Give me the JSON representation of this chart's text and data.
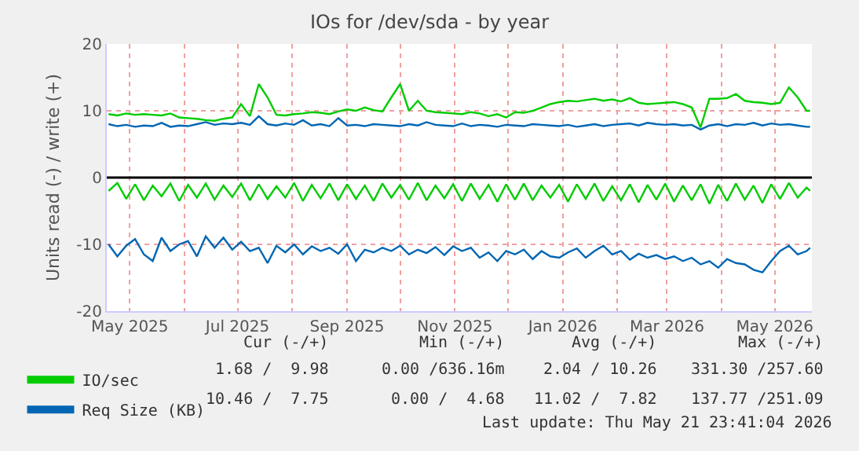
{
  "chart_data": {
    "type": "line",
    "title": "IOs for /dev/sda - by year",
    "ylabel": "Units read (-) / write (+)",
    "x": [
      "2025-04-19",
      "2025-04-24",
      "2025-04-29",
      "2025-05-04",
      "2025-05-09",
      "2025-05-14",
      "2025-05-19",
      "2025-05-24",
      "2025-05-29",
      "2025-06-03",
      "2025-06-08",
      "2025-06-13",
      "2025-06-18",
      "2025-06-23",
      "2025-06-28",
      "2025-07-03",
      "2025-07-08",
      "2025-07-13",
      "2025-07-18",
      "2025-07-23",
      "2025-07-28",
      "2025-08-02",
      "2025-08-07",
      "2025-08-12",
      "2025-08-17",
      "2025-08-22",
      "2025-08-27",
      "2025-09-01",
      "2025-09-06",
      "2025-09-11",
      "2025-09-16",
      "2025-09-21",
      "2025-09-26",
      "2025-10-01",
      "2025-10-06",
      "2025-10-11",
      "2025-10-16",
      "2025-10-21",
      "2025-10-26",
      "2025-10-31",
      "2025-11-05",
      "2025-11-10",
      "2025-11-15",
      "2025-11-20",
      "2025-11-25",
      "2025-11-30",
      "2025-12-05",
      "2025-12-10",
      "2025-12-15",
      "2025-12-20",
      "2025-12-25",
      "2025-12-30",
      "2026-01-04",
      "2026-01-09",
      "2026-01-14",
      "2026-01-19",
      "2026-01-24",
      "2026-01-29",
      "2026-02-03",
      "2026-02-08",
      "2026-02-13",
      "2026-02-18",
      "2026-02-23",
      "2026-02-28",
      "2026-03-05",
      "2026-03-10",
      "2026-03-15",
      "2026-03-20",
      "2026-03-25",
      "2026-03-30",
      "2026-04-04",
      "2026-04-09",
      "2026-04-14",
      "2026-04-19",
      "2026-04-24",
      "2026-04-29",
      "2026-05-04",
      "2026-05-09",
      "2026-05-14",
      "2026-05-19",
      "2026-05-21"
    ],
    "series": [
      {
        "name": "IO/sec",
        "color": "#00cc00",
        "values": [
          9.5,
          9.3,
          9.6,
          9.4,
          9.5,
          9.4,
          9.3,
          9.6,
          9.0,
          8.9,
          8.8,
          8.6,
          8.5,
          8.8,
          9.0,
          11.0,
          9.2,
          14.0,
          12.0,
          9.4,
          9.3,
          9.5,
          9.6,
          9.8,
          9.7,
          9.5,
          9.9,
          10.2,
          10.0,
          10.5,
          10.1,
          9.9,
          12.0,
          14.0,
          10.0,
          11.5,
          10.0,
          9.8,
          9.7,
          9.6,
          9.5,
          9.8,
          9.6,
          9.2,
          9.5,
          9.0,
          9.8,
          9.7,
          10.0,
          10.5,
          11.0,
          11.3,
          11.5,
          11.4,
          11.6,
          11.8,
          11.5,
          11.7,
          11.4,
          11.9,
          11.2,
          11.0,
          11.1,
          11.2,
          11.3,
          11.0,
          10.5,
          7.5,
          11.8,
          11.8,
          11.9,
          12.5,
          11.5,
          11.3,
          11.2,
          11.0,
          11.2,
          13.5,
          12.0,
          10.0,
          10.0
        ]
      },
      {
        "color": "#00cc00",
        "values": [
          -2.0,
          -0.8,
          -3.2,
          -1.0,
          -3.4,
          -1.2,
          -2.8,
          -0.9,
          -3.5,
          -1.1,
          -3.0,
          -0.9,
          -3.3,
          -1.2,
          -2.9,
          -0.9,
          -3.4,
          -1.0,
          -3.2,
          -1.3,
          -3.0,
          -0.8,
          -3.5,
          -1.1,
          -3.1,
          -0.9,
          -3.4,
          -1.0,
          -3.2,
          -1.2,
          -3.5,
          -0.9,
          -3.0,
          -1.1,
          -3.3,
          -0.8,
          -3.4,
          -1.2,
          -3.1,
          -1.0,
          -3.5,
          -0.9,
          -3.2,
          -1.1,
          -3.6,
          -1.0,
          -3.3,
          -0.9,
          -3.4,
          -1.2,
          -3.0,
          -1.1,
          -3.6,
          -1.0,
          -3.2,
          -0.9,
          -3.5,
          -1.3,
          -3.4,
          -1.0,
          -3.7,
          -1.1,
          -3.3,
          -0.9,
          -3.6,
          -1.2,
          -3.4,
          -1.0,
          -3.9,
          -1.1,
          -3.5,
          -0.9,
          -3.3,
          -1.2,
          -3.8,
          -1.0,
          -3.2,
          -0.8,
          -3.0,
          -1.5,
          -2.0
        ]
      },
      {
        "name": "Req Size (KB)",
        "color": "#0066b3",
        "values": [
          8.0,
          7.7,
          7.9,
          7.6,
          7.8,
          7.7,
          8.2,
          7.6,
          7.8,
          7.7,
          8.0,
          8.3,
          7.9,
          8.1,
          8.0,
          8.2,
          7.9,
          9.2,
          8.0,
          7.8,
          8.1,
          7.9,
          8.6,
          7.8,
          8.0,
          7.7,
          8.9,
          7.8,
          7.9,
          7.7,
          8.0,
          7.9,
          7.8,
          7.7,
          8.0,
          7.8,
          8.3,
          7.9,
          7.8,
          7.7,
          8.1,
          7.7,
          7.9,
          7.8,
          7.6,
          7.9,
          7.8,
          7.7,
          8.0,
          7.9,
          7.8,
          7.7,
          7.9,
          7.6,
          7.8,
          8.0,
          7.7,
          7.9,
          8.0,
          8.1,
          7.8,
          8.2,
          8.0,
          7.9,
          8.0,
          7.8,
          7.9,
          7.2,
          7.8,
          8.0,
          7.7,
          8.0,
          7.9,
          8.2,
          7.8,
          8.1,
          7.9,
          8.0,
          7.8,
          7.6,
          7.6
        ]
      },
      {
        "color": "#0066b3",
        "values": [
          -10.0,
          -11.8,
          -10.2,
          -9.2,
          -11.5,
          -12.5,
          -9.0,
          -11.0,
          -10.0,
          -9.5,
          -11.8,
          -8.8,
          -10.5,
          -9.0,
          -10.8,
          -9.6,
          -11.0,
          -10.5,
          -12.8,
          -10.2,
          -11.2,
          -10.0,
          -11.5,
          -10.3,
          -11.0,
          -10.5,
          -11.4,
          -10.0,
          -12.5,
          -10.8,
          -11.2,
          -10.5,
          -11.0,
          -10.2,
          -11.5,
          -10.8,
          -11.3,
          -10.4,
          -11.6,
          -10.3,
          -11.0,
          -10.5,
          -12.0,
          -11.2,
          -12.5,
          -11.0,
          -11.5,
          -10.8,
          -12.2,
          -11.0,
          -11.8,
          -12.0,
          -11.2,
          -10.6,
          -12.0,
          -11.0,
          -10.2,
          -11.5,
          -11.0,
          -12.3,
          -11.4,
          -12.0,
          -11.6,
          -12.2,
          -11.8,
          -12.5,
          -12.0,
          -13.0,
          -12.5,
          -13.5,
          -12.2,
          -12.8,
          -13.0,
          -13.8,
          -14.2,
          -12.5,
          -11.0,
          -10.2,
          -11.5,
          -11.0,
          -10.5
        ]
      }
    ],
    "xlim": [
      "2025-04-18",
      "2026-05-22"
    ],
    "xticks": [
      {
        "value": "2025-05-01",
        "label": "May 2025"
      },
      {
        "value": "2025-06-01",
        "label": null
      },
      {
        "value": "2025-07-01",
        "label": "Jul 2025"
      },
      {
        "value": "2025-08-01",
        "label": null
      },
      {
        "value": "2025-09-01",
        "label": "Sep 2025"
      },
      {
        "value": "2025-10-01",
        "label": null
      },
      {
        "value": "2025-11-01",
        "label": "Nov 2025"
      },
      {
        "value": "2025-12-01",
        "label": null
      },
      {
        "value": "2026-01-01",
        "label": "Jan 2026"
      },
      {
        "value": "2026-02-01",
        "label": null
      },
      {
        "value": "2026-03-01",
        "label": "Mar 2026"
      },
      {
        "value": "2026-04-01",
        "label": null
      },
      {
        "value": "2026-05-01",
        "label": "May 2026"
      }
    ],
    "ylim": [
      -20,
      20
    ],
    "yticks": [
      -20,
      -10,
      0,
      10,
      20
    ],
    "ref_lines": [
      {
        "axis": "y",
        "value": 0,
        "color": "#000000"
      }
    ],
    "grid": true,
    "legend": "bottom left",
    "marker": "none",
    "line_style": "solid",
    "annotations": [
      "Cur (-/+)",
      "Min (-/+)",
      "Avg (-/+)",
      "Max (-/+)",
      "1.68 /  9.98",
      "0.00 /636.16m",
      "2.04 / 10.26",
      "331.30 /257.60",
      "10.46 /  7.75",
      "0.00 /  4.68",
      "11.02 /  7.82",
      "137.77 /251.09",
      "Last update: Thu May 21 23:41:04 2026"
    ]
  }
}
